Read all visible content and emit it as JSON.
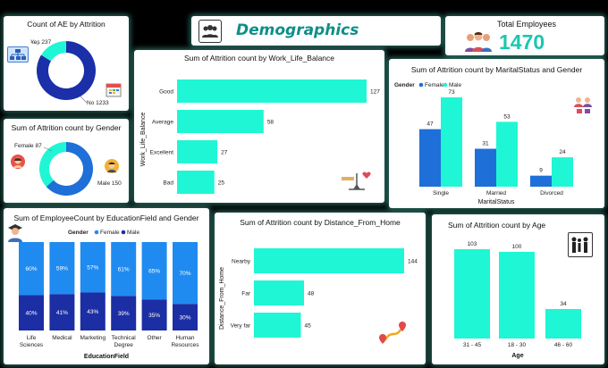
{
  "header": {
    "title": "Demographics",
    "total_label": "Total Employees",
    "total_value": "1470"
  },
  "colors": {
    "cyan": "#1FF6D5",
    "dark_blue": "#1A2FA8",
    "mid_blue": "#1E6FD8",
    "female_blue": "#1E6FD8",
    "male_cyan": "#1FF6D5",
    "edu_female": "#1F8BF0",
    "edu_male": "#1C2EA3"
  },
  "icons": {
    "attrition": "org-chart-icon",
    "calendar": "calendar-icon",
    "female": "female-avatar-icon",
    "male": "male-avatar-icon",
    "demographics": "group-icon",
    "employees": "people-icon",
    "balance": "scale-icon",
    "couple": "couple-icon",
    "graduate": "graduate-icon",
    "route": "route-pin-icon",
    "family": "family-icon"
  },
  "chart_data": [
    {
      "id": "ae",
      "type": "pie",
      "title": "Count of AE by Attrition",
      "categories": [
        "Yes",
        "No"
      ],
      "values": [
        237,
        1233
      ],
      "labels": [
        "Yes 237",
        "No 1233"
      ]
    },
    {
      "id": "gender",
      "type": "pie",
      "title": "Sum of Attrition count by Gender",
      "categories": [
        "Female",
        "Male"
      ],
      "values": [
        87,
        150
      ],
      "labels": [
        "Female 87",
        "Male 150"
      ]
    },
    {
      "id": "wlb",
      "type": "bar",
      "orientation": "horizontal",
      "title": "Sum of Attrition count by Work_Life_Balance",
      "ylabel": "Work_Life_Balance",
      "categories": [
        "Good",
        "Average",
        "Excellent",
        "Bad"
      ],
      "values": [
        127,
        58,
        27,
        25
      ]
    },
    {
      "id": "marital",
      "type": "bar",
      "title": "Sum of Attrition count by MaritalStatus and Gender",
      "legend_title": "Gender",
      "xlabel": "MaritalStatus",
      "categories": [
        "Single",
        "Married",
        "Divorced"
      ],
      "series": [
        {
          "name": "Female",
          "values": [
            47,
            31,
            9
          ]
        },
        {
          "name": "Male",
          "values": [
            73,
            53,
            24
          ]
        }
      ]
    },
    {
      "id": "edu",
      "type": "bar",
      "stacked": "100%",
      "title": "Sum of EmployeeCount by EducationField and Gender",
      "legend_title": "Gender",
      "xlabel": "EducationField",
      "categories": [
        "Life Sciences",
        "Medical",
        "Marketing",
        "Technical Degree",
        "Other",
        "Human Resources"
      ],
      "series": [
        {
          "name": "Female",
          "values": [
            60,
            59,
            57,
            61,
            65,
            70
          ],
          "labels": [
            "60%",
            "59%",
            "57%",
            "61%",
            "65%",
            "70%"
          ]
        },
        {
          "name": "Male",
          "values": [
            40,
            41,
            43,
            39,
            35,
            30
          ],
          "labels": [
            "40%",
            "41%",
            "43%",
            "39%",
            "35%",
            "30%"
          ]
        }
      ]
    },
    {
      "id": "distance",
      "type": "bar",
      "orientation": "horizontal",
      "title": "Sum of Attrition count by Distance_From_Home",
      "ylabel": "Distance_From_Home",
      "categories": [
        "Nearby",
        "Far",
        "Very far"
      ],
      "values": [
        144,
        48,
        45
      ]
    },
    {
      "id": "age",
      "type": "bar",
      "title": "Sum of Attrition count by Age",
      "xlabel": "Age",
      "categories": [
        "31 - 45",
        "18 - 30",
        "46 - 60"
      ],
      "values": [
        103,
        100,
        34
      ]
    }
  ]
}
